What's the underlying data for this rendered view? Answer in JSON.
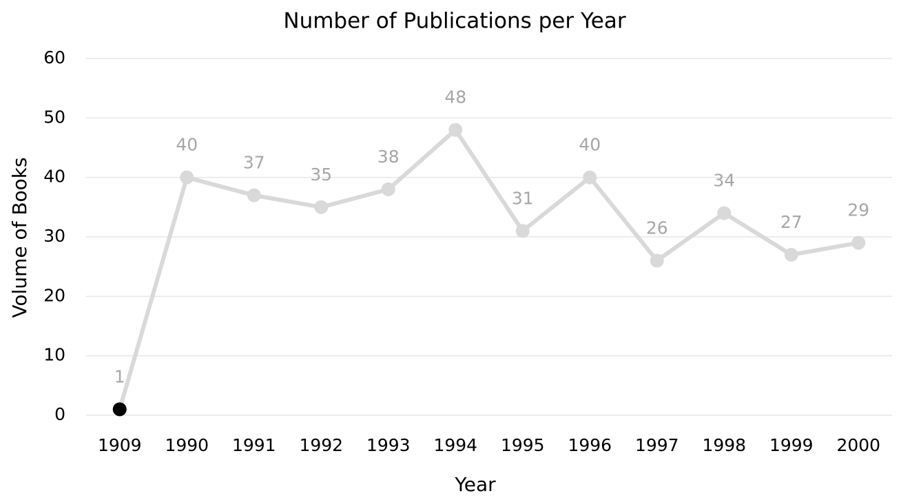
{
  "chart_data": {
    "type": "line",
    "title": "Number of Publications per Year",
    "x_label": "Year",
    "y_label": "Volume of Books",
    "categories": [
      "1909",
      "1990",
      "1991",
      "1992",
      "1993",
      "1994",
      "1995",
      "1996",
      "1997",
      "1998",
      "1999",
      "2000"
    ],
    "values": [
      1,
      40,
      37,
      35,
      38,
      48,
      31,
      40,
      26,
      34,
      27,
      29
    ],
    "color": "#d9d9d9",
    "marker_colors": [
      "#000000",
      "#d9d9d9",
      "#d9d9d9",
      "#d9d9d9",
      "#d9d9d9",
      "#d9d9d9",
      "#d9d9d9",
      "#d9d9d9",
      "#d9d9d9",
      "#d9d9d9",
      "#d9d9d9",
      "#d9d9d9"
    ],
    "label_color": "#a6a6a6",
    "ylim": [
      0,
      60
    ],
    "yticks": [
      0,
      10,
      20,
      30,
      40,
      50,
      60
    ],
    "grid": true,
    "data_labels": true
  }
}
